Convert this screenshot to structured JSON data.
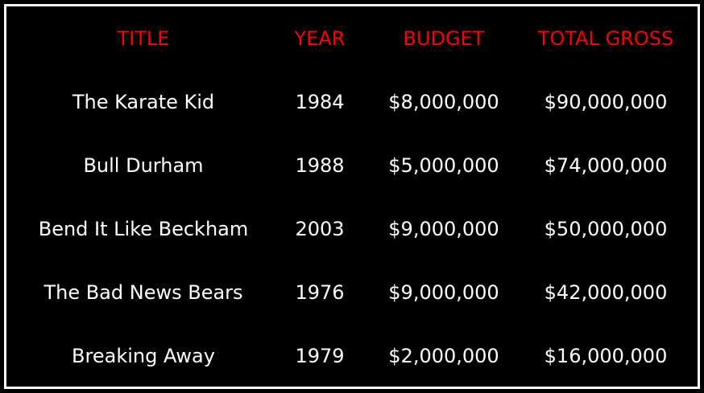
{
  "table": {
    "header_color": "#ff0000",
    "text_color": "#ffffff",
    "background_color": "#000000",
    "columns": [
      "TITLE",
      "YEAR",
      "BUDGET",
      "TOTAL GROSS"
    ],
    "rows": [
      {
        "title": "The Karate Kid",
        "year": "1984",
        "budget": "$8,000,000",
        "gross": "$90,000,000"
      },
      {
        "title": "Bull Durham",
        "year": "1988",
        "budget": "$5,000,000",
        "gross": "$74,000,000"
      },
      {
        "title": "Bend It Like Beckham",
        "year": "2003",
        "budget": "$9,000,000",
        "gross": "$50,000,000"
      },
      {
        "title": "The Bad News Bears",
        "year": "1976",
        "budget": "$9,000,000",
        "gross": "$42,000,000"
      },
      {
        "title": "Breaking Away",
        "year": "1979",
        "budget": "$2,000,000",
        "gross": "$16,000,000"
      }
    ]
  }
}
